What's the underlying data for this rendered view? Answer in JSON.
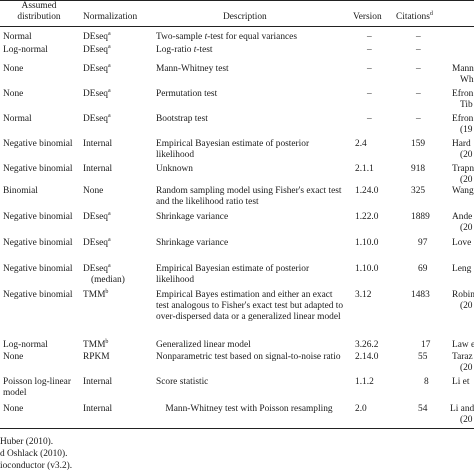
{
  "header": {
    "assumed_distribution": "Assumed distribution",
    "normalization": "Normalization",
    "description": "Description",
    "version": "Version",
    "citations": "Citations",
    "citations_sup": "d"
  },
  "rows": [
    {
      "dist": "Normal",
      "norm": "DEseq",
      "norm_sup": "a",
      "desc_pre": "Two-sample ",
      "desc_it": "t",
      "desc_post": "-test for equal variances",
      "ver": "–",
      "cit": "–",
      "ref": ""
    },
    {
      "dist": "Log-normal",
      "norm": "DEseq",
      "norm_sup": "a",
      "desc_pre": "Log-ratio ",
      "desc_it": "t",
      "desc_post": "-test",
      "ver": "–",
      "cit": "–",
      "ref": ""
    },
    {
      "dist": "None",
      "norm": "DEseq",
      "norm_sup": "a",
      "desc": "Mann-Whitney test",
      "ver": "–",
      "cit": "–",
      "ref": "Mann",
      "ref2": "Wh"
    },
    {
      "dist": "None",
      "norm": "DEseq",
      "norm_sup": "a",
      "desc": "Permutation test",
      "ver": "–",
      "cit": "–",
      "ref": "Efron",
      "ref2": "Tib"
    },
    {
      "dist": "Normal",
      "norm": "DEseq",
      "norm_sup": "a",
      "desc": "Bootstrap test",
      "ver": "–",
      "cit": "–",
      "ref": "Efron",
      "ref2": "(19"
    },
    {
      "dist": "Negative binomial",
      "norm": "Internal",
      "desc": "Empirical Bayesian estimate of posterior likelihood",
      "ver": "2.4",
      "cit": "159",
      "ref": "Hard",
      "ref2": "(20"
    },
    {
      "dist": "Negative binomial",
      "norm": "Internal",
      "desc": "Unknown",
      "ver": "2.1.1",
      "cit": "918",
      "ref": "Trapn",
      "ref2": "(20"
    },
    {
      "dist": "Binomial",
      "norm": "None",
      "desc": "Random sampling model using Fisher's exact test and the likelihood ratio test",
      "ver": "1.24.0",
      "cit": "325",
      "ref": "Wang"
    },
    {
      "dist": "Negative binomial",
      "norm": "DEseq",
      "norm_sup": "a",
      "desc": "Shrinkage variance",
      "ver": "1.22.0",
      "cit": "1889",
      "ref": "Ande",
      "ref2": "(20"
    },
    {
      "dist": "Negative binomial",
      "norm": "DEseq",
      "norm_sup": "a",
      "desc": "Shrinkage variance",
      "ver": "1.10.0",
      "cit": "97",
      "ref": "Love"
    },
    {
      "dist": "Negative binomial",
      "norm": "DEseq",
      "norm_sup": "a",
      "norm2": "(median)",
      "desc": "Empirical Bayesian estimate of posterior likelihood",
      "ver": "1.10.0",
      "cit": "69",
      "ref": "Leng"
    },
    {
      "dist": "Negative binomial",
      "norm": "TMM",
      "norm_sup": "b",
      "desc": "Empirical Bayes estimation and either an exact test analogous to Fisher's exact test but adapted to over-dispersed data or a generalized linear model",
      "ver": "3.12",
      "cit": "1483",
      "ref": "Robin",
      "ref2": "(20"
    },
    {
      "dist": "Log-normal",
      "norm": "TMM",
      "norm_sup": "b",
      "desc": "Generalized linear model",
      "ver": "3.26.2",
      "cit": "17",
      "ref": "Law e"
    },
    {
      "dist": "None",
      "norm": "RPKM",
      "desc": "Nonparametric test based on signal-to-noise ratio",
      "ver": "2.14.0",
      "cit": "55",
      "ref": "Taraz",
      "ref2": "(20"
    },
    {
      "dist": "Poisson log-linear model",
      "norm": "Internal",
      "desc": "Score statistic",
      "ver": "1.1.2",
      "cit": "8",
      "ref": "Li et"
    },
    {
      "dist": "None",
      "norm": "Internal",
      "desc": "Mann-Whitney test with Poisson resampling",
      "ver": "2.0",
      "cit": "54",
      "ref": "Li and",
      "ref2": "(20"
    }
  ],
  "footnotes": [
    "Huber (2010).",
    "d Oshlack (2010).",
    "ioconductor (v3.2)."
  ]
}
